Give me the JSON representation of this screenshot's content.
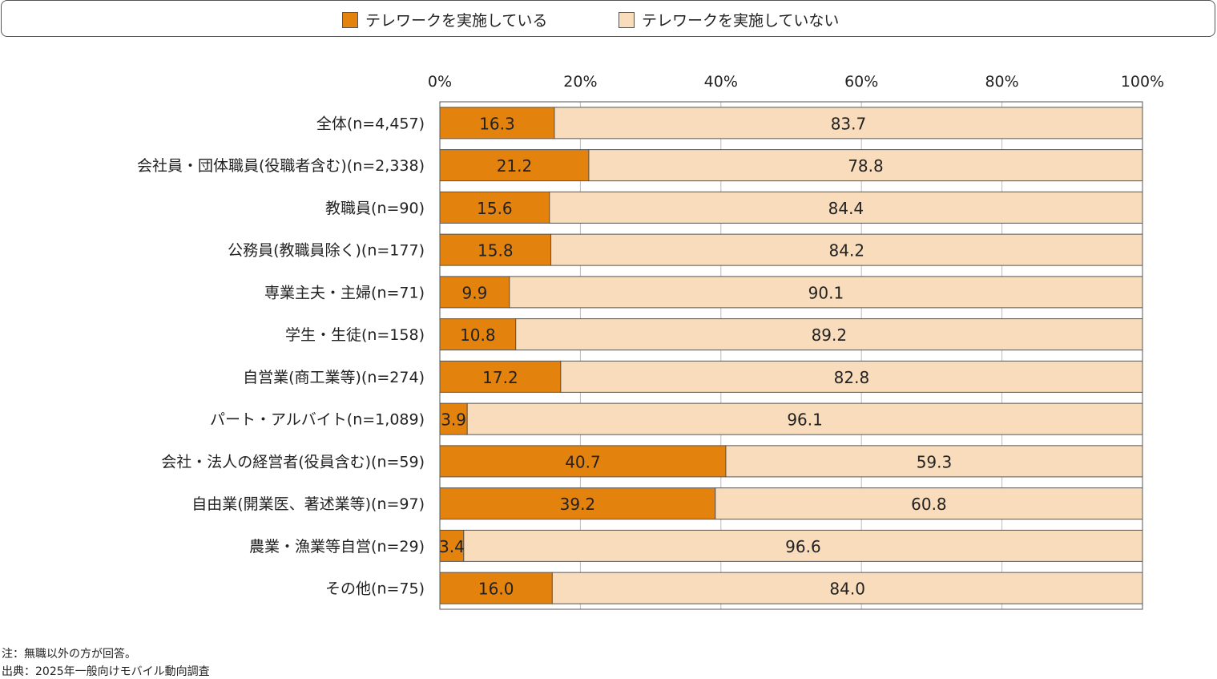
{
  "colors": {
    "yes": "#e4820e",
    "no": "#f8dcbc",
    "border": "#555555"
  },
  "legend": {
    "yes_label": "テレワークを実施している",
    "no_label": "テレワークを実施していない"
  },
  "chart_data": {
    "type": "bar",
    "orientation": "horizontal",
    "stacked": true,
    "xlim": [
      0,
      100
    ],
    "x_ticks": [
      "0%",
      "20%",
      "40%",
      "60%",
      "80%",
      "100%"
    ],
    "categories": [
      "全体(n=4,457)",
      "会社員・団体職員(役職者含む)(n=2,338)",
      "教職員(n=90)",
      "公務員(教職員除く)(n=177)",
      "専業主夫・主婦(n=71)",
      "学生・生徒(n=158)",
      "自営業(商工業等)(n=274)",
      "パート・アルバイト(n=1,089)",
      "会社・法人の経営者(役員含む)(n=59)",
      "自由業(開業医、著述業等)(n=97)",
      "農業・漁業等自営(n=29)",
      "その他(n=75)"
    ],
    "series": [
      {
        "name": "テレワークを実施している",
        "values": [
          16.3,
          21.2,
          15.6,
          15.8,
          9.9,
          10.8,
          17.2,
          3.9,
          40.7,
          39.2,
          3.4,
          16.0
        ],
        "labels": [
          "16.3",
          "21.2",
          "15.6",
          "15.8",
          "9.9",
          "10.8",
          "17.2",
          "3.9",
          "40.7",
          "39.2",
          "3.4",
          "16.0"
        ]
      },
      {
        "name": "テレワークを実施していない",
        "values": [
          83.7,
          78.8,
          84.4,
          84.2,
          90.1,
          89.2,
          82.8,
          96.1,
          59.3,
          60.8,
          96.6,
          84.0
        ],
        "labels": [
          "83.7",
          "78.8",
          "84.4",
          "84.2",
          "90.1",
          "89.2",
          "82.8",
          "96.1",
          "59.3",
          "60.8",
          "96.6",
          "84.0"
        ]
      }
    ],
    "grid": true
  },
  "notes": {
    "note": "注：無職以外の方が回答。",
    "source": "出典：2025年一般向けモバイル動向調査"
  }
}
